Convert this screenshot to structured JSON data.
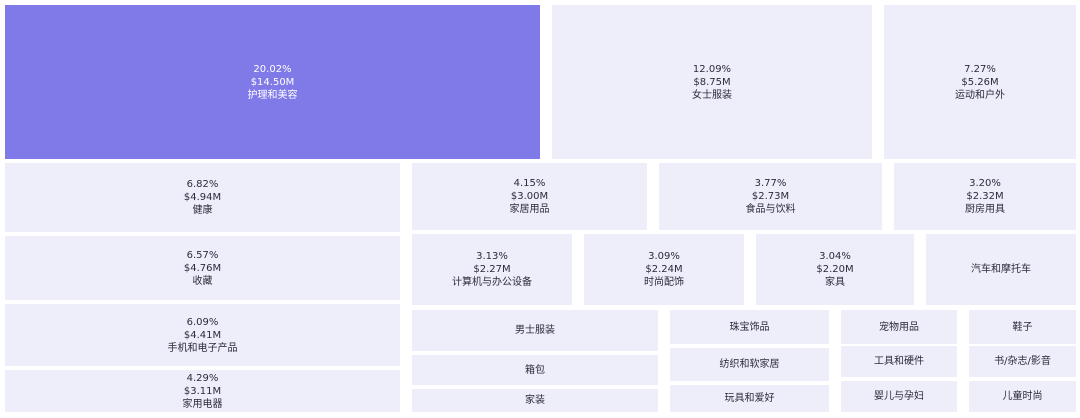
{
  "chart_data": {
    "type": "treemap",
    "colors": {
      "highlight": "#8079e8",
      "tile": "#eeedfa"
    },
    "items": [
      {
        "percent": "20.02%",
        "value": "$14.50M",
        "label": "护理和美容",
        "highlight": true
      },
      {
        "percent": "12.09%",
        "value": "$8.75M",
        "label": "女士服装"
      },
      {
        "percent": "7.27%",
        "value": "$5.26M",
        "label": "运动和户外"
      },
      {
        "percent": "6.82%",
        "value": "$4.94M",
        "label": "健康"
      },
      {
        "percent": "6.57%",
        "value": "$4.76M",
        "label": "收藏"
      },
      {
        "percent": "6.09%",
        "value": "$4.41M",
        "label": "手机和电子产品"
      },
      {
        "percent": "4.29%",
        "value": "$3.11M",
        "label": "家用电器"
      },
      {
        "percent": "4.15%",
        "value": "$3.00M",
        "label": "家居用品"
      },
      {
        "percent": "3.77%",
        "value": "$2.73M",
        "label": "食品与饮料"
      },
      {
        "percent": "3.20%",
        "value": "$2.32M",
        "label": "厨房用具"
      },
      {
        "percent": "3.13%",
        "value": "$2.27M",
        "label": "计算机与办公设备"
      },
      {
        "percent": "3.09%",
        "value": "$2.24M",
        "label": "时尚配饰"
      },
      {
        "percent": "3.04%",
        "value": "$2.20M",
        "label": "家具"
      },
      {
        "label": "汽车和摩托车"
      },
      {
        "label": "男士服装"
      },
      {
        "label": "箱包"
      },
      {
        "label": "家装"
      },
      {
        "label": "珠宝饰品"
      },
      {
        "label": "纺织和软家居"
      },
      {
        "label": "玩具和爱好"
      },
      {
        "label": "宠物用品"
      },
      {
        "label": "工具和硬件"
      },
      {
        "label": "婴儿与孕妇"
      },
      {
        "label": "鞋子"
      },
      {
        "label": "书/杂志/影音"
      },
      {
        "label": "儿童时尚"
      }
    ]
  }
}
